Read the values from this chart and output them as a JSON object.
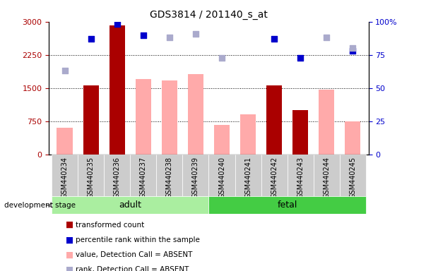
{
  "title": "GDS3814 / 201140_s_at",
  "categories": [
    "GSM440234",
    "GSM440235",
    "GSM440236",
    "GSM440237",
    "GSM440238",
    "GSM440239",
    "GSM440240",
    "GSM440241",
    "GSM440242",
    "GSM440243",
    "GSM440244",
    "GSM440245"
  ],
  "transformed_count": [
    null,
    1560,
    2910,
    null,
    null,
    null,
    null,
    null,
    1560,
    1000,
    null,
    null
  ],
  "percentile_rank": [
    null,
    87,
    98,
    90,
    null,
    null,
    null,
    null,
    87,
    73,
    null,
    78
  ],
  "value_absent": [
    600,
    null,
    null,
    1700,
    1680,
    1820,
    670,
    900,
    null,
    null,
    1460,
    755
  ],
  "rank_absent": [
    63,
    null,
    null,
    null,
    88,
    91,
    73,
    null,
    null,
    null,
    88,
    80
  ],
  "adult_indices": [
    0,
    1,
    2,
    3,
    4,
    5
  ],
  "fetal_indices": [
    6,
    7,
    8,
    9,
    10,
    11
  ],
  "ylim_left": [
    0,
    3000
  ],
  "ylim_right": [
    0,
    100
  ],
  "yticks_left": [
    0,
    750,
    1500,
    2250,
    3000
  ],
  "yticks_right": [
    0,
    25,
    50,
    75,
    100
  ],
  "colors": {
    "transformed_count": "#aa0000",
    "percentile_rank": "#0000cc",
    "value_absent": "#ffaaaa",
    "rank_absent": "#aaaacc",
    "adult_bg": "#aaeea0",
    "fetal_bg": "#44cc44",
    "tick_bg": "#cccccc",
    "grid": "#000000"
  },
  "bar_width": 0.6,
  "scatter_size": 28
}
